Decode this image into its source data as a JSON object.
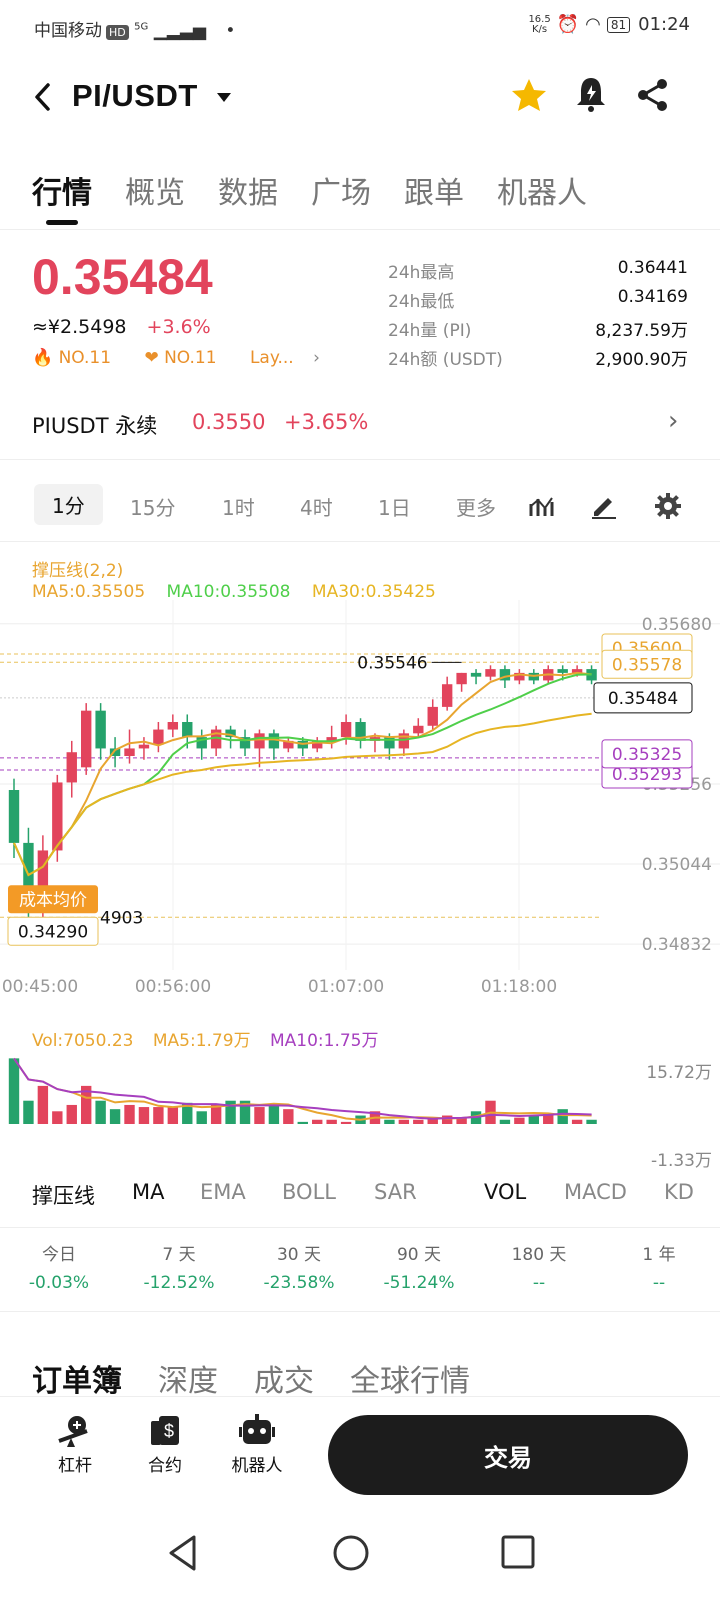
{
  "status_bar": {
    "carrier": "中国移动",
    "hd": "HD",
    "network": "5G",
    "speed_value": "16.5",
    "speed_unit": "K/s",
    "battery": "81",
    "time": "01:24"
  },
  "header": {
    "pair": "PI/USDT"
  },
  "tabs": [
    {
      "label": "行情"
    },
    {
      "label": "概览"
    },
    {
      "label": "数据"
    },
    {
      "label": "广场"
    },
    {
      "label": "跟单"
    },
    {
      "label": "机器人"
    }
  ],
  "ticker": {
    "price": "0.35484",
    "cny_price": "≈¥2.5498",
    "change": "+3.6%",
    "rank_hot": "NO.11",
    "rank_fav": "NO.11",
    "layer": "Lay...",
    "stats": [
      {
        "label": "24h最高",
        "value": "0.36441"
      },
      {
        "label": "24h最低",
        "value": "0.34169"
      },
      {
        "label": "24h量 (PI)",
        "value": "8,237.59万"
      },
      {
        "label": "24h额 (USDT)",
        "value": "2,900.90万"
      }
    ]
  },
  "perpetual": {
    "name": "PIUSDT 永续",
    "price": "0.3550",
    "change": "+3.65%"
  },
  "timeframes": [
    {
      "label": "1分"
    },
    {
      "label": "15分"
    },
    {
      "label": "1时"
    },
    {
      "label": "4时"
    },
    {
      "label": "1日"
    },
    {
      "label": "更多"
    }
  ],
  "chart_legend": {
    "indicator": "撑压线(2,2)",
    "ma5": "MA5:0.35505",
    "ma10": "MA10:0.35508",
    "ma30": "MA30:0.35425"
  },
  "vol_legend": {
    "vol": "Vol:7050.23",
    "ma5": "MA5:1.79万",
    "ma10": "MA10:1.75万"
  },
  "chart_data": [
    {
      "type": "candlestick",
      "y_ticks": [
        "0.35680",
        "0.35256",
        "0.35044",
        "0.34832"
      ],
      "x_ticks": [
        "00:45:00",
        "00:56:00",
        "01:07:00",
        "01:18:00"
      ],
      "ylim": [
        0.3479,
        0.3569
      ],
      "markers": {
        "high_label": "0.35546",
        "low_label": "0.34903",
        "resistance_a": "0.35600",
        "resistance_b": "0.35578",
        "current": "0.35484",
        "support_a": "0.35325",
        "support_b": "0.35293",
        "cost_label": "成本均价",
        "cost_value": "0.34290"
      },
      "candles": [
        [
          0.3524,
          0.351,
          0.3527,
          0.3506
        ],
        [
          0.351,
          0.3493,
          0.3514,
          0.349
        ],
        [
          0.3493,
          0.3508,
          0.3512,
          0.3489
        ],
        [
          0.3508,
          0.3526,
          0.3528,
          0.3505
        ],
        [
          0.3526,
          0.3534,
          0.3537,
          0.3522
        ],
        [
          0.353,
          0.3545,
          0.3547,
          0.3528
        ],
        [
          0.3545,
          0.3535,
          0.3547,
          0.3532
        ],
        [
          0.3535,
          0.3533,
          0.3538,
          0.353
        ],
        [
          0.3533,
          0.3535,
          0.354,
          0.3531
        ],
        [
          0.3535,
          0.3536,
          0.3538,
          0.3532
        ],
        [
          0.3536,
          0.354,
          0.3542,
          0.3534
        ],
        [
          0.354,
          0.3542,
          0.3544,
          0.3538
        ],
        [
          0.3542,
          0.3538,
          0.3544,
          0.3535
        ],
        [
          0.3538,
          0.3535,
          0.354,
          0.3532
        ],
        [
          0.3535,
          0.354,
          0.3541,
          0.3533
        ],
        [
          0.354,
          0.3538,
          0.3541,
          0.3535
        ],
        [
          0.3538,
          0.3535,
          0.354,
          0.3533
        ],
        [
          0.3535,
          0.3539,
          0.354,
          0.353
        ],
        [
          0.3539,
          0.3535,
          0.354,
          0.3532
        ],
        [
          0.3535,
          0.3537,
          0.3538,
          0.3534
        ],
        [
          0.3537,
          0.3535,
          0.3538,
          0.3533
        ],
        [
          0.3535,
          0.3537,
          0.3538,
          0.3534
        ],
        [
          0.3537,
          0.3538,
          0.3541,
          0.3535
        ],
        [
          0.3538,
          0.3542,
          0.3544,
          0.3536
        ],
        [
          0.3542,
          0.3537,
          0.3543,
          0.3535
        ],
        [
          0.3537,
          0.3538,
          0.3539,
          0.3534
        ],
        [
          0.3538,
          0.3535,
          0.3539,
          0.3532
        ],
        [
          0.3535,
          0.3539,
          0.354,
          0.3533
        ],
        [
          0.3539,
          0.3541,
          0.3543,
          0.3538
        ],
        [
          0.3541,
          0.3546,
          0.3548,
          0.354
        ],
        [
          0.3546,
          0.3552,
          0.3554,
          0.3545
        ],
        [
          0.3552,
          0.3555,
          0.3555,
          0.355
        ],
        [
          0.3555,
          0.3554,
          0.3556,
          0.3552
        ],
        [
          0.3554,
          0.3556,
          0.3557,
          0.3553
        ],
        [
          0.3556,
          0.3553,
          0.3557,
          0.3551
        ],
        [
          0.3553,
          0.3555,
          0.3556,
          0.3552
        ],
        [
          0.3555,
          0.3553,
          0.3556,
          0.3552
        ],
        [
          0.3553,
          0.3556,
          0.3557,
          0.3552
        ],
        [
          0.3556,
          0.3555,
          0.3557,
          0.3553
        ],
        [
          0.3555,
          0.3556,
          0.3557,
          0.3554
        ],
        [
          0.3556,
          0.3553,
          0.3557,
          0.3552
        ]
      ],
      "volumes": [
        3.1,
        1.1,
        1.8,
        0.6,
        0.9,
        1.8,
        1.1,
        0.7,
        0.9,
        0.8,
        0.8,
        0.8,
        1.0,
        0.6,
        0.9,
        1.1,
        1.1,
        0.8,
        0.9,
        0.7,
        0.1,
        0.2,
        0.2,
        0.1,
        0.4,
        0.6,
        0.2,
        0.2,
        0.2,
        0.3,
        0.4,
        0.3,
        0.6,
        1.1,
        0.2,
        0.3,
        0.4,
        0.5,
        0.7,
        0.2,
        0.2
      ]
    }
  ],
  "indicators": [
    {
      "label": "撑压线"
    },
    {
      "label": "MA"
    },
    {
      "label": "EMA"
    },
    {
      "label": "BOLL"
    },
    {
      "label": "SAR"
    },
    {
      "label": "VOL"
    },
    {
      "label": "MACD"
    },
    {
      "label": "KD"
    }
  ],
  "vol_axis": {
    "top": "15.72万",
    "bottom": "-1.33万"
  },
  "performance": [
    {
      "period": "今日",
      "value": "-0.03%"
    },
    {
      "period": "7 天",
      "value": "-12.52%"
    },
    {
      "period": "30 天",
      "value": "-23.58%"
    },
    {
      "period": "90 天",
      "value": "-51.24%"
    },
    {
      "period": "180 天",
      "value": "--"
    },
    {
      "period": "1 年",
      "value": "--"
    }
  ],
  "orderbook_tabs": [
    {
      "label": "订单簿"
    },
    {
      "label": "深度"
    },
    {
      "label": "成交"
    },
    {
      "label": "全球行情"
    }
  ],
  "bottom_nav": {
    "leverage": "杠杆",
    "contract": "合约",
    "bot": "机器人",
    "trade": "交易"
  },
  "colors": {
    "up": "#e2445c",
    "down": "#25a26b",
    "ma5": "#e8a530",
    "ma10": "#4fcf4a",
    "ma30": "#e6b523",
    "accent": "#f5b800"
  }
}
